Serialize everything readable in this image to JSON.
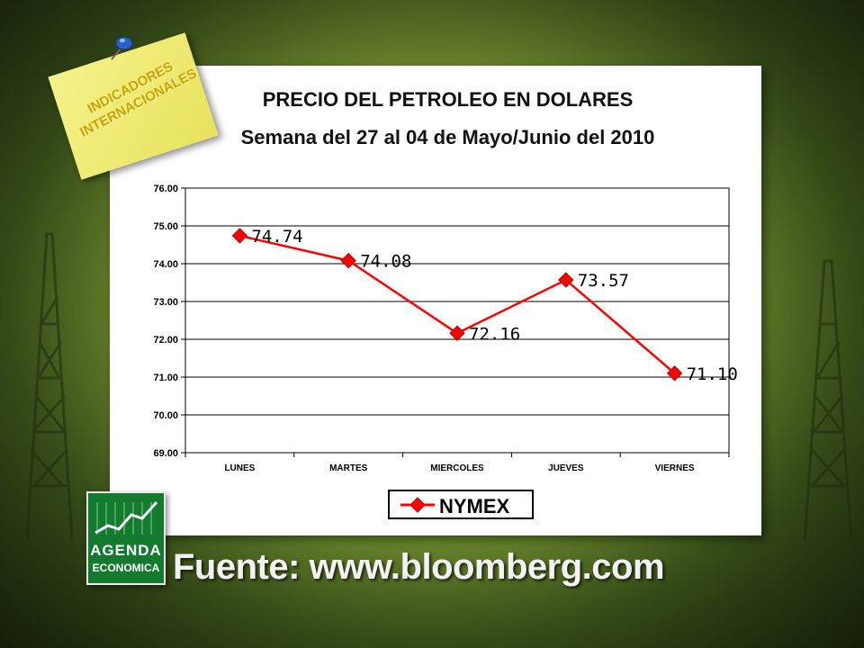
{
  "header": {
    "title": "PRECIO DEL PETROLEO EN DOLARES",
    "subtitle": "Semana del 27 al 04 de Mayo/Junio del 2010"
  },
  "badge": {
    "line1": "INDICADORES",
    "line2": "INTERNACIONALES"
  },
  "logo": {
    "line1": "AGENDA",
    "line2": "ECONOMICA"
  },
  "footer": {
    "source": "Fuente: www.bloomberg.com"
  },
  "colors": {
    "series": "#ff0000",
    "postit_text": "#c9a300",
    "logo_green": "#147a2e"
  },
  "chart_data": {
    "type": "line",
    "categories": [
      "LUNES",
      "MARTES",
      "MIERCOLES",
      "JUEVES",
      "VIERNES"
    ],
    "series": [
      {
        "name": "NYMEX",
        "values": [
          74.74,
          74.08,
          72.16,
          73.57,
          71.1
        ]
      }
    ],
    "data_labels": [
      "74.74",
      "74.08",
      "72.16",
      "73.57",
      "71.10"
    ],
    "yticks": [
      "69.00",
      "70.00",
      "71.00",
      "72.00",
      "73.00",
      "74.00",
      "75.00",
      "76.00"
    ],
    "ylim": [
      69,
      76
    ],
    "grid": true,
    "legend": "bottom-center",
    "marker": "diamond"
  }
}
